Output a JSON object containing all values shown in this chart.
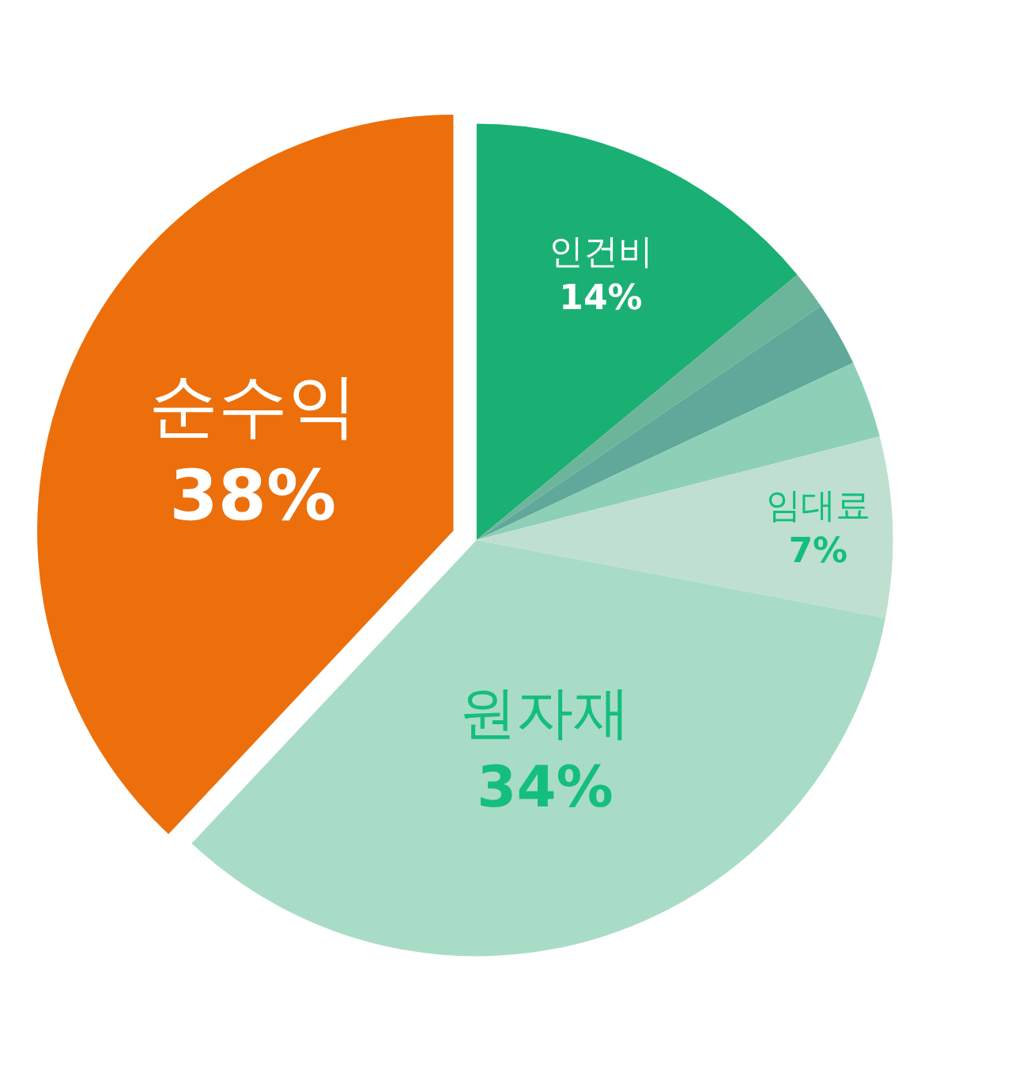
{
  "chart_data": {
    "type": "pie",
    "categories": [
      "인건비",
      null,
      null,
      null,
      "임대료",
      "원자재",
      "순수익"
    ],
    "values": [
      14,
      1.5,
      2.5,
      3,
      7,
      34,
      38
    ],
    "value_labels": [
      "14%",
      null,
      null,
      null,
      "7%",
      "34%",
      "38%"
    ],
    "colors": [
      "#1aaf73",
      "#6db59a",
      "#5fa89a",
      "#8ecfb7",
      "#bfe0d0",
      "#a9dcc6",
      "#ec6f0b"
    ]
  }
}
